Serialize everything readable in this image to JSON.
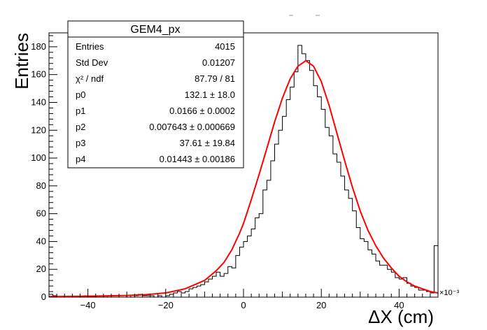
{
  "chart_data": {
    "type": "histogram",
    "title": "",
    "xlabel": "ΔX (cm)",
    "ylabel": "Entries",
    "x_exponent_label": "×10⁻³",
    "xlim": [
      -50,
      50
    ],
    "ylim": [
      0,
      190
    ],
    "x_ticks": [
      -40,
      -20,
      0,
      20,
      40
    ],
    "y_ticks": [
      0,
      20,
      40,
      60,
      80,
      100,
      120,
      140,
      160,
      180
    ],
    "x_tick_labels": [
      "−40",
      "−20",
      "0",
      "20",
      "40"
    ],
    "y_tick_labels": [
      "0",
      "20",
      "40",
      "60",
      "80",
      "100",
      "120",
      "140",
      "160",
      "180"
    ],
    "grid": false,
    "bin_width": 1,
    "bins_x_start": [
      -50,
      -49,
      -48,
      -47,
      -46,
      -45,
      -44,
      -43,
      -42,
      -41,
      -40,
      -39,
      -38,
      -37,
      -36,
      -35,
      -34,
      -33,
      -32,
      -31,
      -30,
      -29,
      -28,
      -27,
      -26,
      -25,
      -24,
      -23,
      -22,
      -21,
      -20,
      -19,
      -18,
      -17,
      -16,
      -15,
      -14,
      -13,
      -12,
      -11,
      -10,
      -9,
      -8,
      -7,
      -6,
      -5,
      -4,
      -3,
      -2,
      -1,
      0,
      1,
      2,
      3,
      4,
      5,
      6,
      7,
      8,
      9,
      10,
      11,
      12,
      13,
      14,
      15,
      16,
      17,
      18,
      19,
      20,
      21,
      22,
      23,
      24,
      25,
      26,
      27,
      28,
      29,
      30,
      31,
      32,
      33,
      34,
      35,
      36,
      37,
      38,
      39,
      40,
      41,
      42,
      43,
      44,
      45,
      46,
      47,
      48,
      49
    ],
    "counts": [
      2,
      1,
      0,
      0,
      0,
      0,
      0,
      0,
      0,
      1,
      0,
      0,
      0,
      0,
      1,
      0,
      0,
      0,
      0,
      0,
      1,
      0,
      1,
      2,
      1,
      1,
      1,
      0,
      1,
      0,
      1,
      2,
      3,
      4,
      3,
      4,
      6,
      7,
      8,
      9,
      11,
      13,
      15,
      18,
      15,
      17,
      22,
      21,
      30,
      36,
      40,
      44,
      49,
      57,
      60,
      77,
      84,
      98,
      110,
      120,
      130,
      142,
      151,
      162,
      181,
      175,
      170,
      163,
      152,
      144,
      135,
      122,
      116,
      103,
      97,
      87,
      77,
      71,
      62,
      50,
      42,
      40,
      34,
      31,
      26,
      23,
      23,
      20,
      18,
      14,
      13,
      14,
      10,
      8,
      7,
      5,
      5,
      4,
      3,
      37
    ],
    "fit_function": {
      "name": "fit",
      "color": "#ff0000",
      "points": [
        [
          -50,
          0.4
        ],
        [
          -40,
          0.7
        ],
        [
          -30,
          1.2
        ],
        [
          -25,
          1.8
        ],
        [
          -20,
          3.0
        ],
        [
          -15,
          6.0
        ],
        [
          -10,
          12
        ],
        [
          -7,
          19
        ],
        [
          -5,
          25
        ],
        [
          -3,
          34
        ],
        [
          -1,
          46
        ],
        [
          0,
          53
        ],
        [
          2,
          70
        ],
        [
          4,
          88
        ],
        [
          6,
          107
        ],
        [
          8,
          126
        ],
        [
          10,
          143
        ],
        [
          12,
          157
        ],
        [
          14,
          166
        ],
        [
          16,
          170
        ],
        [
          18,
          166
        ],
        [
          20,
          155
        ],
        [
          22,
          138
        ],
        [
          24,
          118
        ],
        [
          26,
          98
        ],
        [
          28,
          79
        ],
        [
          30,
          62
        ],
        [
          32,
          48
        ],
        [
          34,
          37
        ],
        [
          36,
          28
        ],
        [
          38,
          21
        ],
        [
          40,
          15
        ],
        [
          42,
          11
        ],
        [
          44,
          8
        ],
        [
          46,
          6
        ],
        [
          48,
          4
        ],
        [
          50,
          3
        ]
      ]
    }
  },
  "stats_box": {
    "title": "GEM4_px",
    "rows": [
      {
        "label": "Entries",
        "value": "4015"
      },
      {
        "label": "Std Dev",
        "value": "0.01207"
      },
      {
        "label": "χ² / ndf",
        "value": "87.79 / 81"
      },
      {
        "label": "p0",
        "value": "132.1 ± 18.0"
      },
      {
        "label": "p1",
        "value": "0.0166 ± 0.0002"
      },
      {
        "label": "p2",
        "value": "0.007643 ± 0.000669"
      },
      {
        "label": "p3",
        "value": "37.61 ± 19.84"
      },
      {
        "label": "p4",
        "value": "0.01443 ± 0.00186"
      }
    ]
  },
  "colors": {
    "histogram": "#000000",
    "fit": "#ff0000",
    "frame": "#000000"
  }
}
